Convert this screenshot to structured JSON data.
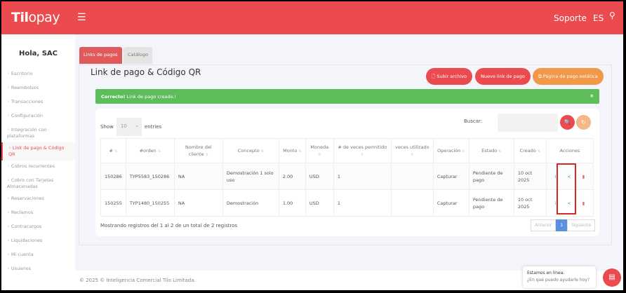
{
  "header": {
    "logo": "Tilopay",
    "menu_icon": "hamburger-icon",
    "support": "Soporte",
    "lang": "ES",
    "user_icon": "user-icon",
    "brand_color": "#eb4b4e"
  },
  "sidebar": {
    "greeting": "Hola, SAC",
    "items": [
      {
        "label": "Escritorio",
        "icon": "home-icon"
      },
      {
        "label": "Reembolsos",
        "icon": "refresh-icon"
      },
      {
        "label": "Transacciones",
        "icon": "receipt-icon"
      },
      {
        "label": "Configuración",
        "icon": "sliders-icon"
      },
      {
        "label": "Integración con plataformas",
        "icon": "cart-icon"
      },
      {
        "label": "Link de pago & Código QR",
        "icon": "link-icon",
        "active": true
      },
      {
        "label": "Cobros recurrentes",
        "icon": "cycle-icon"
      },
      {
        "label": "Cobro con Tarjetas Almacenadas",
        "icon": "database-icon"
      },
      {
        "label": "Reservaciones",
        "icon": "card-icon"
      },
      {
        "label": "Reclamos",
        "icon": "list-icon"
      },
      {
        "label": "Contracargos",
        "icon": "bank-icon"
      },
      {
        "label": "Liquidaciones",
        "icon": "money-icon"
      },
      {
        "label": "Mi cuenta",
        "icon": "account-icon"
      },
      {
        "label": "Usuarios",
        "icon": "users-icon"
      }
    ]
  },
  "tabs": [
    {
      "label": "Links de pagos",
      "active": true
    },
    {
      "label": "Catálogo"
    }
  ],
  "page": {
    "title": "Link de pago & Código QR",
    "buttons": {
      "upload": "Subir archivo",
      "new": "Nuevo link de pago",
      "static": "Página de pago estática"
    }
  },
  "alert": {
    "strong": "Correcto!",
    "text": " Link de pago creado.!"
  },
  "table": {
    "show": "Show",
    "entries_value": "10",
    "entries": "entries",
    "search_label": "Buscar:",
    "search_value": "",
    "headers": [
      "#",
      "#orden",
      "Nombre del cliente",
      "Concepto",
      "Monto",
      "Moneda",
      "# de veces permitido",
      "veces utilizado",
      "Operación",
      "Estado",
      "Creado",
      "Acciones"
    ],
    "rows": [
      [
        "150286",
        "TYP5583_150286",
        "NA",
        "Demostración 1 solo uso",
        "2.00",
        "USD",
        "1",
        "",
        "Capturar",
        "Pendiente de pago",
        "10 oct 2025"
      ],
      [
        "150255",
        "TYP1480_150255",
        "NA",
        "Demostración",
        "1.00",
        "USD",
        "1",
        "",
        "Capturar",
        "Pendiente de pago",
        "10 oct 2025"
      ]
    ],
    "info": "Mostrando registros del 1 al 2 de un total de 2 registros",
    "pagination": {
      "prev": "Anterior",
      "current": "1",
      "next": "Siguiente"
    }
  },
  "footer": "© 2025 © Inteligencia Comercial Tilo Limitada.",
  "chat": {
    "title": "Estamos en línea.",
    "subtitle": "¿En qué puedo ayudarle hoy?"
  }
}
